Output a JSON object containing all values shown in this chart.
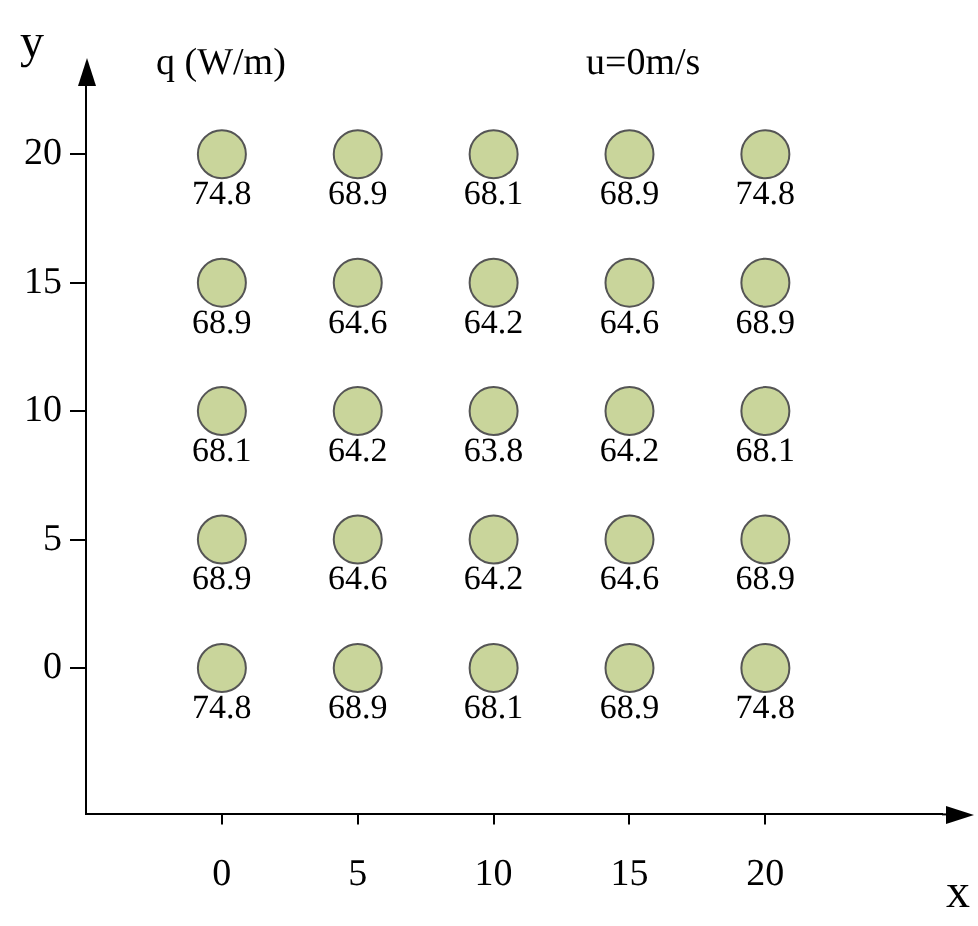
{
  "chart_data": {
    "type": "scatter",
    "xlabel": "x",
    "ylabel": "y",
    "annotations": [
      "q (W/m)",
      "u=0m/s",
      {
        "text": "74.8",
        "x": 0,
        "y": 20
      },
      {
        "text": "68.9",
        "x": 5,
        "y": 20
      },
      {
        "text": "68.1",
        "x": 10,
        "y": 20
      },
      {
        "text": "68.9",
        "x": 15,
        "y": 20
      },
      {
        "text": "74.8",
        "x": 20,
        "y": 20
      },
      {
        "text": "68.9",
        "x": 0,
        "y": 15
      },
      {
        "text": "64.6",
        "x": 5,
        "y": 15
      },
      {
        "text": "64.2",
        "x": 10,
        "y": 15
      },
      {
        "text": "64.6",
        "x": 15,
        "y": 15
      },
      {
        "text": "68.9",
        "x": 20,
        "y": 15
      },
      {
        "text": "68.1",
        "x": 0,
        "y": 10
      },
      {
        "text": "64.2",
        "x": 5,
        "y": 10
      },
      {
        "text": "63.8",
        "x": 10,
        "y": 10
      },
      {
        "text": "64.2",
        "x": 15,
        "y": 10
      },
      {
        "text": "68.1",
        "x": 20,
        "y": 10
      },
      {
        "text": "68.9",
        "x": 0,
        "y": 5
      },
      {
        "text": "64.6",
        "x": 5,
        "y": 5
      },
      {
        "text": "64.2",
        "x": 10,
        "y": 5
      },
      {
        "text": "64.6",
        "x": 15,
        "y": 5
      },
      {
        "text": "68.9",
        "x": 20,
        "y": 5
      },
      {
        "text": "74.8",
        "x": 0,
        "y": 0
      },
      {
        "text": "68.9",
        "x": 5,
        "y": 0
      },
      {
        "text": "68.1",
        "x": 10,
        "y": 0
      },
      {
        "text": "68.9",
        "x": 15,
        "y": 0
      },
      {
        "text": "74.8",
        "x": 20,
        "y": 0
      }
    ],
    "x": [
      0,
      5,
      10,
      15,
      20,
      0,
      5,
      10,
      15,
      20,
      0,
      5,
      10,
      15,
      20,
      0,
      5,
      10,
      15,
      20,
      0,
      5,
      10,
      15,
      20
    ],
    "values": [
      20,
      20,
      20,
      20,
      20,
      15,
      15,
      15,
      15,
      15,
      10,
      10,
      10,
      10,
      10,
      5,
      5,
      5,
      5,
      5,
      0,
      0,
      0,
      0,
      0
    ],
    "color": "#c9d59b",
    "marker": "circle",
    "xlim": [
      -5,
      26.5
    ],
    "ylim": [
      -5.7,
      22.5
    ],
    "xticks": [
      0,
      5,
      10,
      15,
      20
    ],
    "yticks": [
      0,
      5,
      10,
      15,
      20
    ],
    "grid": false,
    "legend": false
  }
}
